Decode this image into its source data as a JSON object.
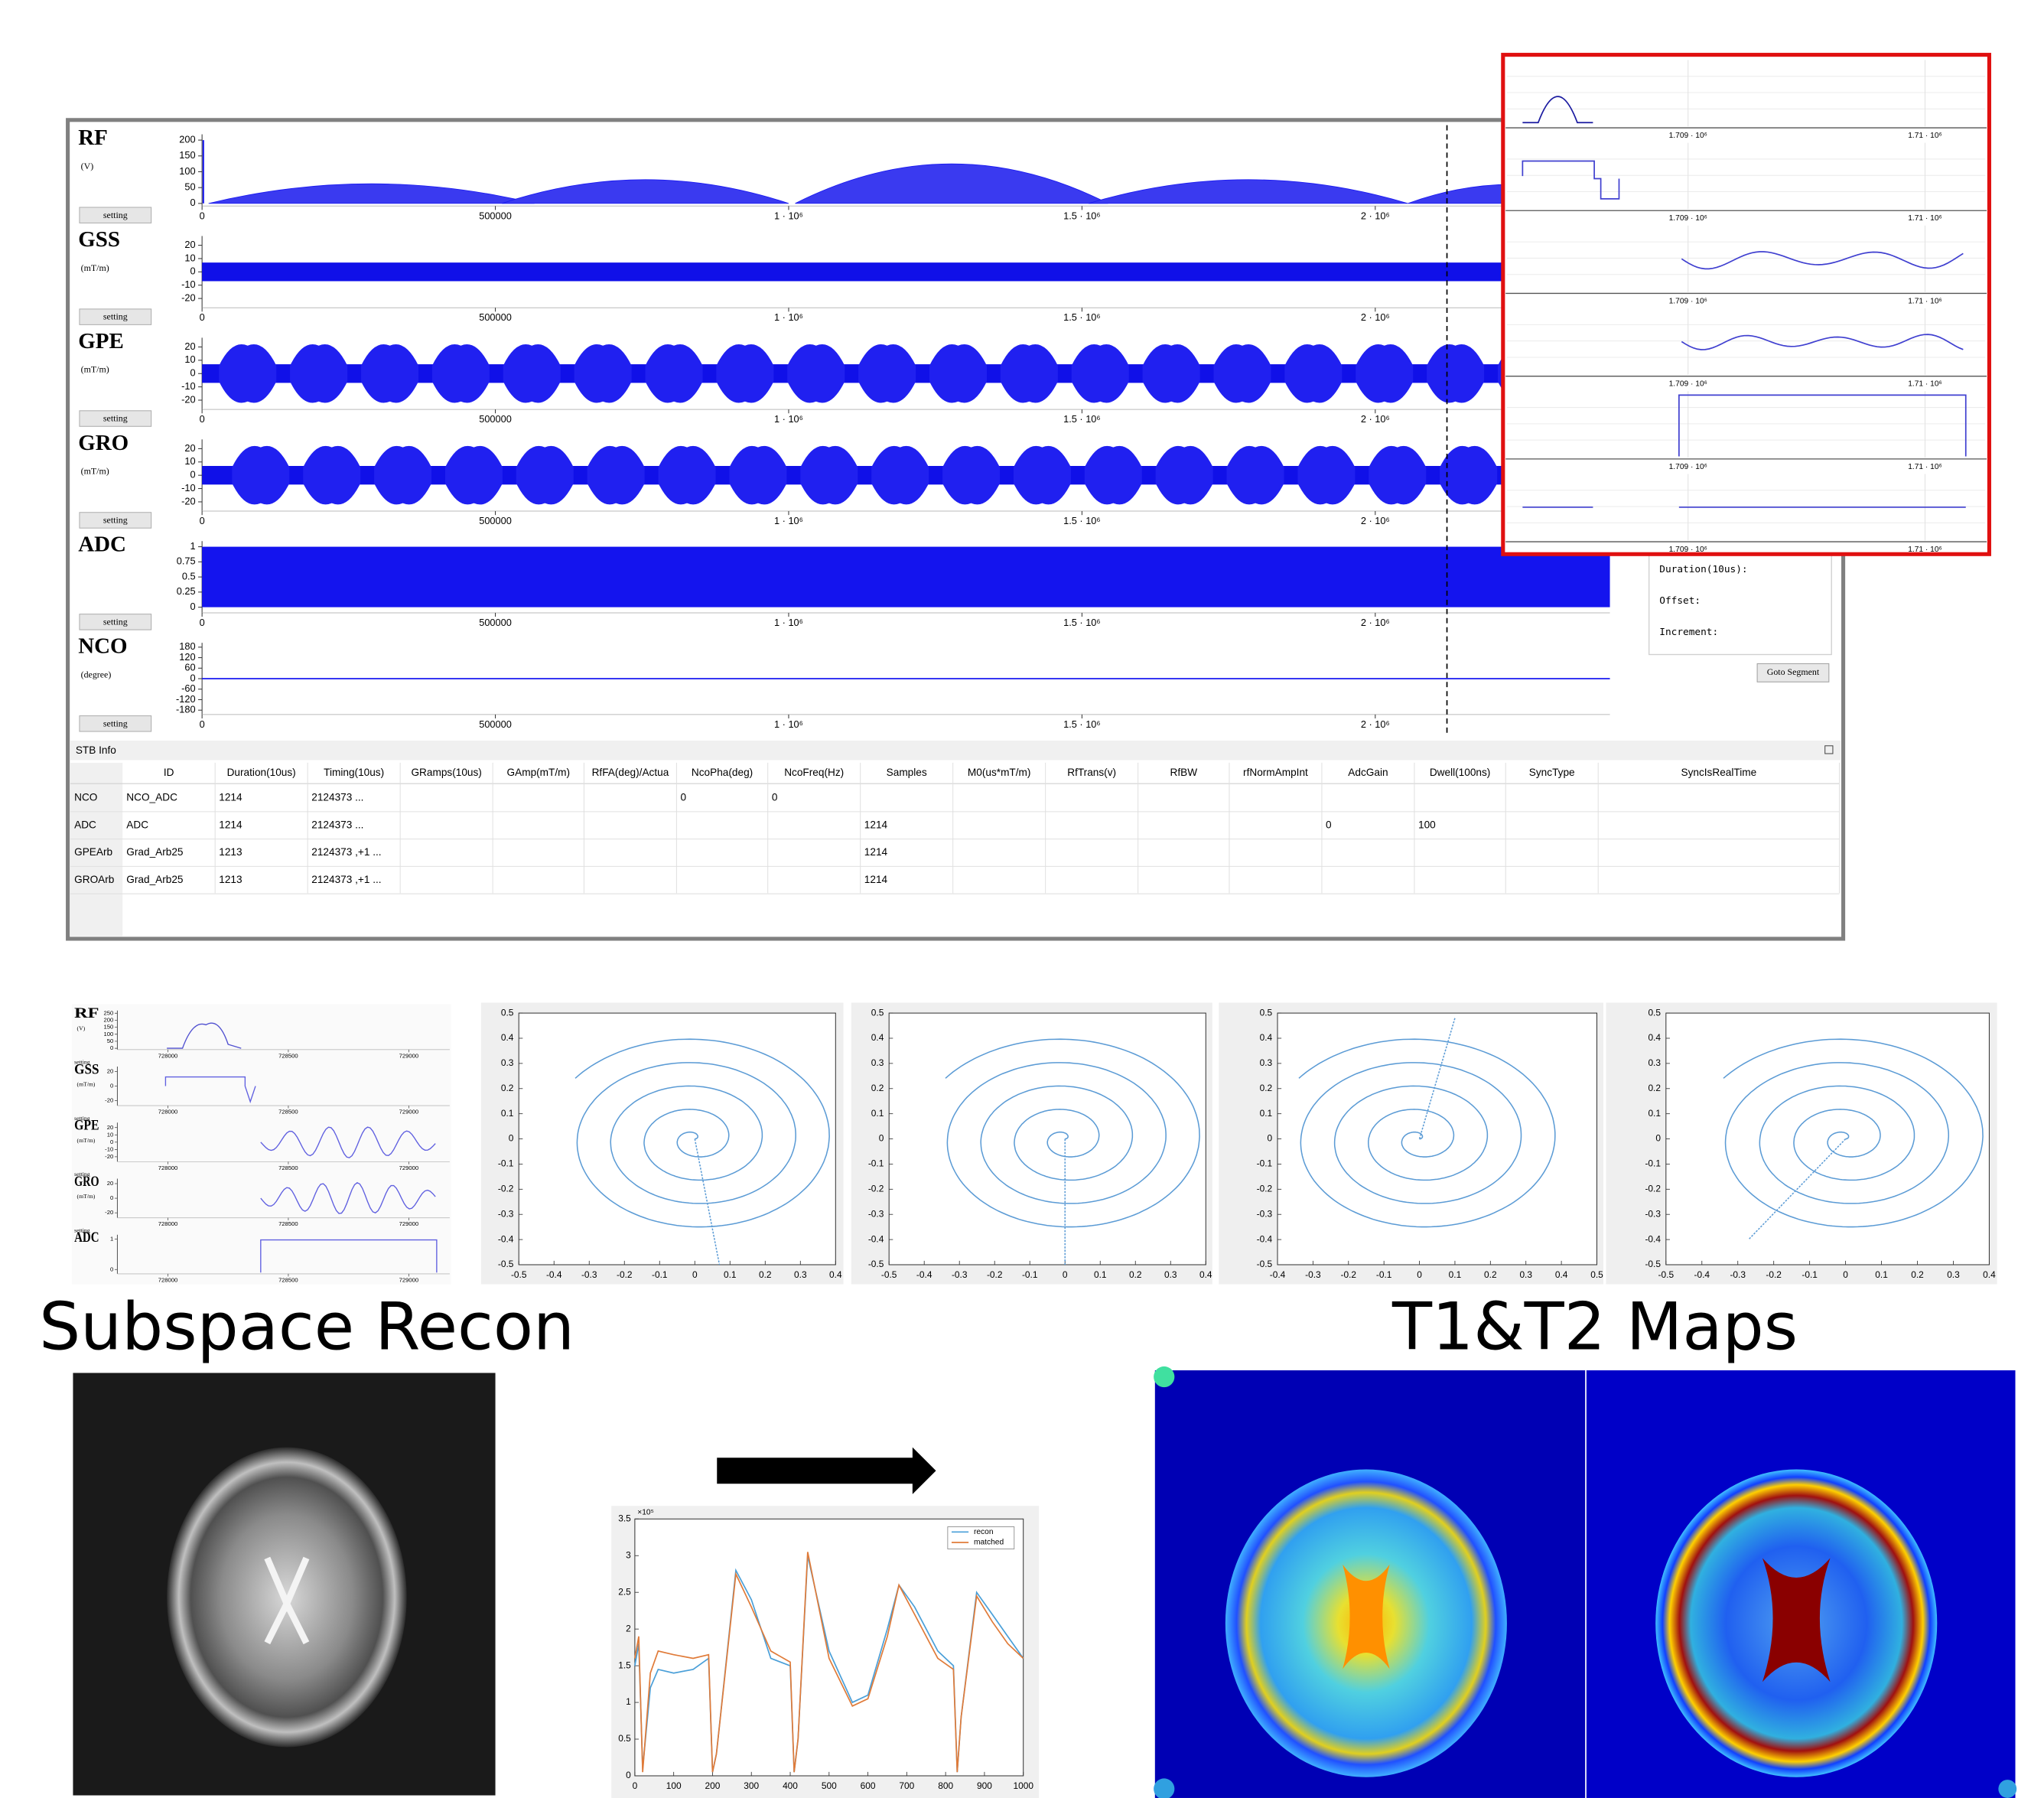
{
  "sequence_viewer": {
    "xlim": [
      0,
      2400000
    ],
    "xticks": [
      0,
      500000,
      {
        "value": 1000000,
        "label": "1 · 10⁶"
      },
      {
        "value": 1500000,
        "label": "1.5 · 10⁶"
      },
      {
        "value": 2000000,
        "label": "2 · 10⁶"
      }
    ],
    "button": "setting",
    "channels": [
      {
        "name": "RF",
        "unit": "(V)",
        "ylim": [
          0,
          210
        ],
        "yticks": [
          200,
          150,
          100,
          50,
          0
        ]
      },
      {
        "name": "GSS",
        "unit": "(mT/m)",
        "ylim": [
          -25,
          25
        ],
        "yticks": [
          20,
          10,
          0,
          -10,
          -20
        ]
      },
      {
        "name": "GPE",
        "unit": "(mT/m)",
        "ylim": [
          -25,
          25
        ],
        "yticks": [
          20,
          10,
          0,
          -10,
          -20
        ]
      },
      {
        "name": "GRO",
        "unit": "(mT/m)",
        "ylim": [
          -25,
          25
        ],
        "yticks": [
          20,
          10,
          0,
          -10,
          -20
        ]
      },
      {
        "name": "ADC",
        "ylim": [
          -0.05,
          1.05
        ],
        "yticks": [
          1,
          0.75,
          0.5,
          0.25,
          0
        ]
      },
      {
        "name": "NCO",
        "unit": "(degree)",
        "ylim": [
          -190,
          190
        ],
        "yticks": [
          180,
          120,
          60,
          0,
          -60,
          -120,
          -180
        ]
      }
    ],
    "zoom_panel": {
      "xlim": [
        1708230,
        1710260
      ],
      "xticks": [
        {
          "value": 1709000,
          "label": "1.709 · 10⁶"
        },
        {
          "value": 1710000,
          "label": "1.71 · 10⁶"
        }
      ]
    },
    "segment_panel": {
      "fields": [
        "Duration(10us):",
        "Offset:",
        "Increment:"
      ],
      "button": "Goto Segment"
    },
    "stb_info": {
      "title": "STB Info",
      "columns": [
        "ID",
        "Duration(10us)",
        "Timing(10us)",
        "GRamps(10us)",
        "GAmp(mT/m)",
        "RfFA(deg)/Actua",
        "NcoPha(deg)",
        "NcoFreq(Hz)",
        "Samples",
        "M0(us*mT/m)",
        "RfTrans(v)",
        "RfBW",
        "rfNormAmpInt",
        "AdcGain",
        "Dwell(100ns)",
        "SyncType",
        "SyncIsRealTime"
      ],
      "rows": [
        {
          "header": "NCO",
          "cells": {
            "ID": "NCO_ADC",
            "Duration(10us)": 1214,
            "Timing(10us)": "2124373 ...",
            "NcoPha(deg)": 0,
            "NcoFreq(Hz)": 0
          }
        },
        {
          "header": "ADC",
          "cells": {
            "ID": "ADC",
            "Duration(10us)": 1214,
            "Timing(10us)": "2124373 ...",
            "Samples": 1214,
            "AdcGain": 0,
            "Dwell(100ns)": 100
          }
        },
        {
          "header": "GPEArb",
          "cells": {
            "ID": "Grad_Arb25",
            "Duration(10us)": 1213,
            "Timing(10us)": "2124373 ,+1 ...",
            "Samples": 1214
          }
        },
        {
          "header": "GROArb",
          "cells": {
            "ID": "Grad_Arb25",
            "Duration(10us)": 1213,
            "Timing(10us)": "2124373 ,+1 ...",
            "Samples": 1214
          }
        }
      ]
    }
  },
  "sequence_zoom": {
    "xlim": [
      727790,
      729170
    ],
    "xticks": [
      728000,
      728500,
      729000
    ],
    "button": "setting",
    "channels": [
      {
        "name": "RF",
        "unit": "(V)",
        "ylim": [
          0,
          260
        ],
        "yticks": [
          250,
          200,
          150,
          100,
          50,
          0
        ]
      },
      {
        "name": "GSS",
        "unit": "(mT/m)",
        "ylim": [
          -25,
          25
        ],
        "yticks": [
          20,
          0,
          -20
        ]
      },
      {
        "name": "GPE",
        "unit": "(mT/m)",
        "ylim": [
          -25,
          25
        ],
        "yticks": [
          20,
          10,
          0,
          -10,
          -20
        ]
      },
      {
        "name": "GRO",
        "unit": "(mT/m)",
        "ylim": [
          -25,
          25
        ],
        "yticks": [
          20,
          0,
          -20
        ]
      },
      {
        "name": "ADC",
        "ylim": [
          -0.1,
          1.1
        ],
        "yticks": [
          1,
          0
        ]
      }
    ]
  },
  "trajectories": [
    {
      "xlim": [
        -0.5,
        0.4
      ],
      "ylim": [
        -0.5,
        0.5
      ],
      "xticks": [
        -0.5,
        -0.4,
        -0.3,
        -0.2,
        -0.1,
        0,
        0.1,
        0.2,
        0.3,
        0.4
      ],
      "yticks": [
        0.5,
        0.4,
        0.3,
        0.2,
        0.1,
        0,
        -0.1,
        -0.2,
        -0.3,
        -0.4,
        -0.5
      ]
    },
    {
      "xlim": [
        -0.5,
        0.4
      ],
      "ylim": [
        -0.5,
        0.5
      ],
      "xticks": [
        -0.5,
        -0.4,
        -0.3,
        -0.2,
        -0.1,
        0,
        0.1,
        0.2,
        0.3,
        0.4
      ],
      "yticks": [
        0.5,
        0.4,
        0.3,
        0.2,
        0.1,
        0,
        -0.1,
        -0.2,
        -0.3,
        -0.4,
        -0.5
      ]
    },
    {
      "xlim": [
        -0.4,
        0.5
      ],
      "ylim": [
        -0.5,
        0.5
      ],
      "xticks": [
        -0.4,
        -0.3,
        -0.2,
        -0.1,
        0,
        0.1,
        0.2,
        0.3,
        0.4,
        0.5
      ],
      "yticks": [
        0.5,
        0.4,
        0.3,
        0.2,
        0.1,
        0,
        -0.1,
        -0.2,
        -0.3,
        -0.4,
        -0.5
      ]
    },
    {
      "xlim": [
        -0.5,
        0.4
      ],
      "ylim": [
        -0.5,
        0.5
      ],
      "xticks": [
        -0.5,
        -0.4,
        -0.3,
        -0.2,
        -0.1,
        0,
        0.1,
        0.2,
        0.3,
        0.4
      ],
      "yticks": [
        0.5,
        0.4,
        0.3,
        0.2,
        0.1,
        0,
        -0.1,
        -0.2,
        -0.3,
        -0.4,
        -0.5
      ]
    }
  ],
  "recon_title": "Subspace Recon",
  "maps_title": "T1&T2 Maps",
  "chart_data": {
    "type": "line",
    "y_scale_label": "×10⁵",
    "x": [
      0,
      10,
      20,
      40,
      60,
      100,
      150,
      190,
      200,
      210,
      260,
      300,
      350,
      400,
      410,
      420,
      445,
      500,
      560,
      600,
      650,
      680,
      720,
      780,
      820,
      830,
      840,
      880,
      920,
      960,
      1000
    ],
    "series": [
      {
        "name": "recon",
        "color": "#4a9fd8",
        "values": [
          1.5,
          1.8,
          0.1,
          1.2,
          1.45,
          1.4,
          1.45,
          1.6,
          0.05,
          0.3,
          2.8,
          2.4,
          1.6,
          1.5,
          0.05,
          0.5,
          3.0,
          1.7,
          1.0,
          1.1,
          2.0,
          2.6,
          2.3,
          1.7,
          1.5,
          0.05,
          0.8,
          2.5,
          2.2,
          1.9,
          1.6
        ]
      },
      {
        "name": "matched",
        "color": "#e07b39",
        "values": [
          1.6,
          1.9,
          0.05,
          1.4,
          1.7,
          1.65,
          1.6,
          1.65,
          0.05,
          0.3,
          2.75,
          2.3,
          1.7,
          1.55,
          0.05,
          0.5,
          3.05,
          1.6,
          0.95,
          1.05,
          1.9,
          2.6,
          2.2,
          1.6,
          1.45,
          0.05,
          0.8,
          2.45,
          2.1,
          1.8,
          1.6
        ]
      }
    ],
    "xlim": [
      0,
      1000
    ],
    "ylim": [
      0,
      3.5
    ],
    "xticks": [
      0,
      100,
      200,
      300,
      400,
      500,
      600,
      700,
      800,
      900,
      1000
    ],
    "yticks": [
      0,
      0.5,
      1,
      1.5,
      2,
      2.5,
      3,
      3.5
    ],
    "legend": "upper right"
  }
}
